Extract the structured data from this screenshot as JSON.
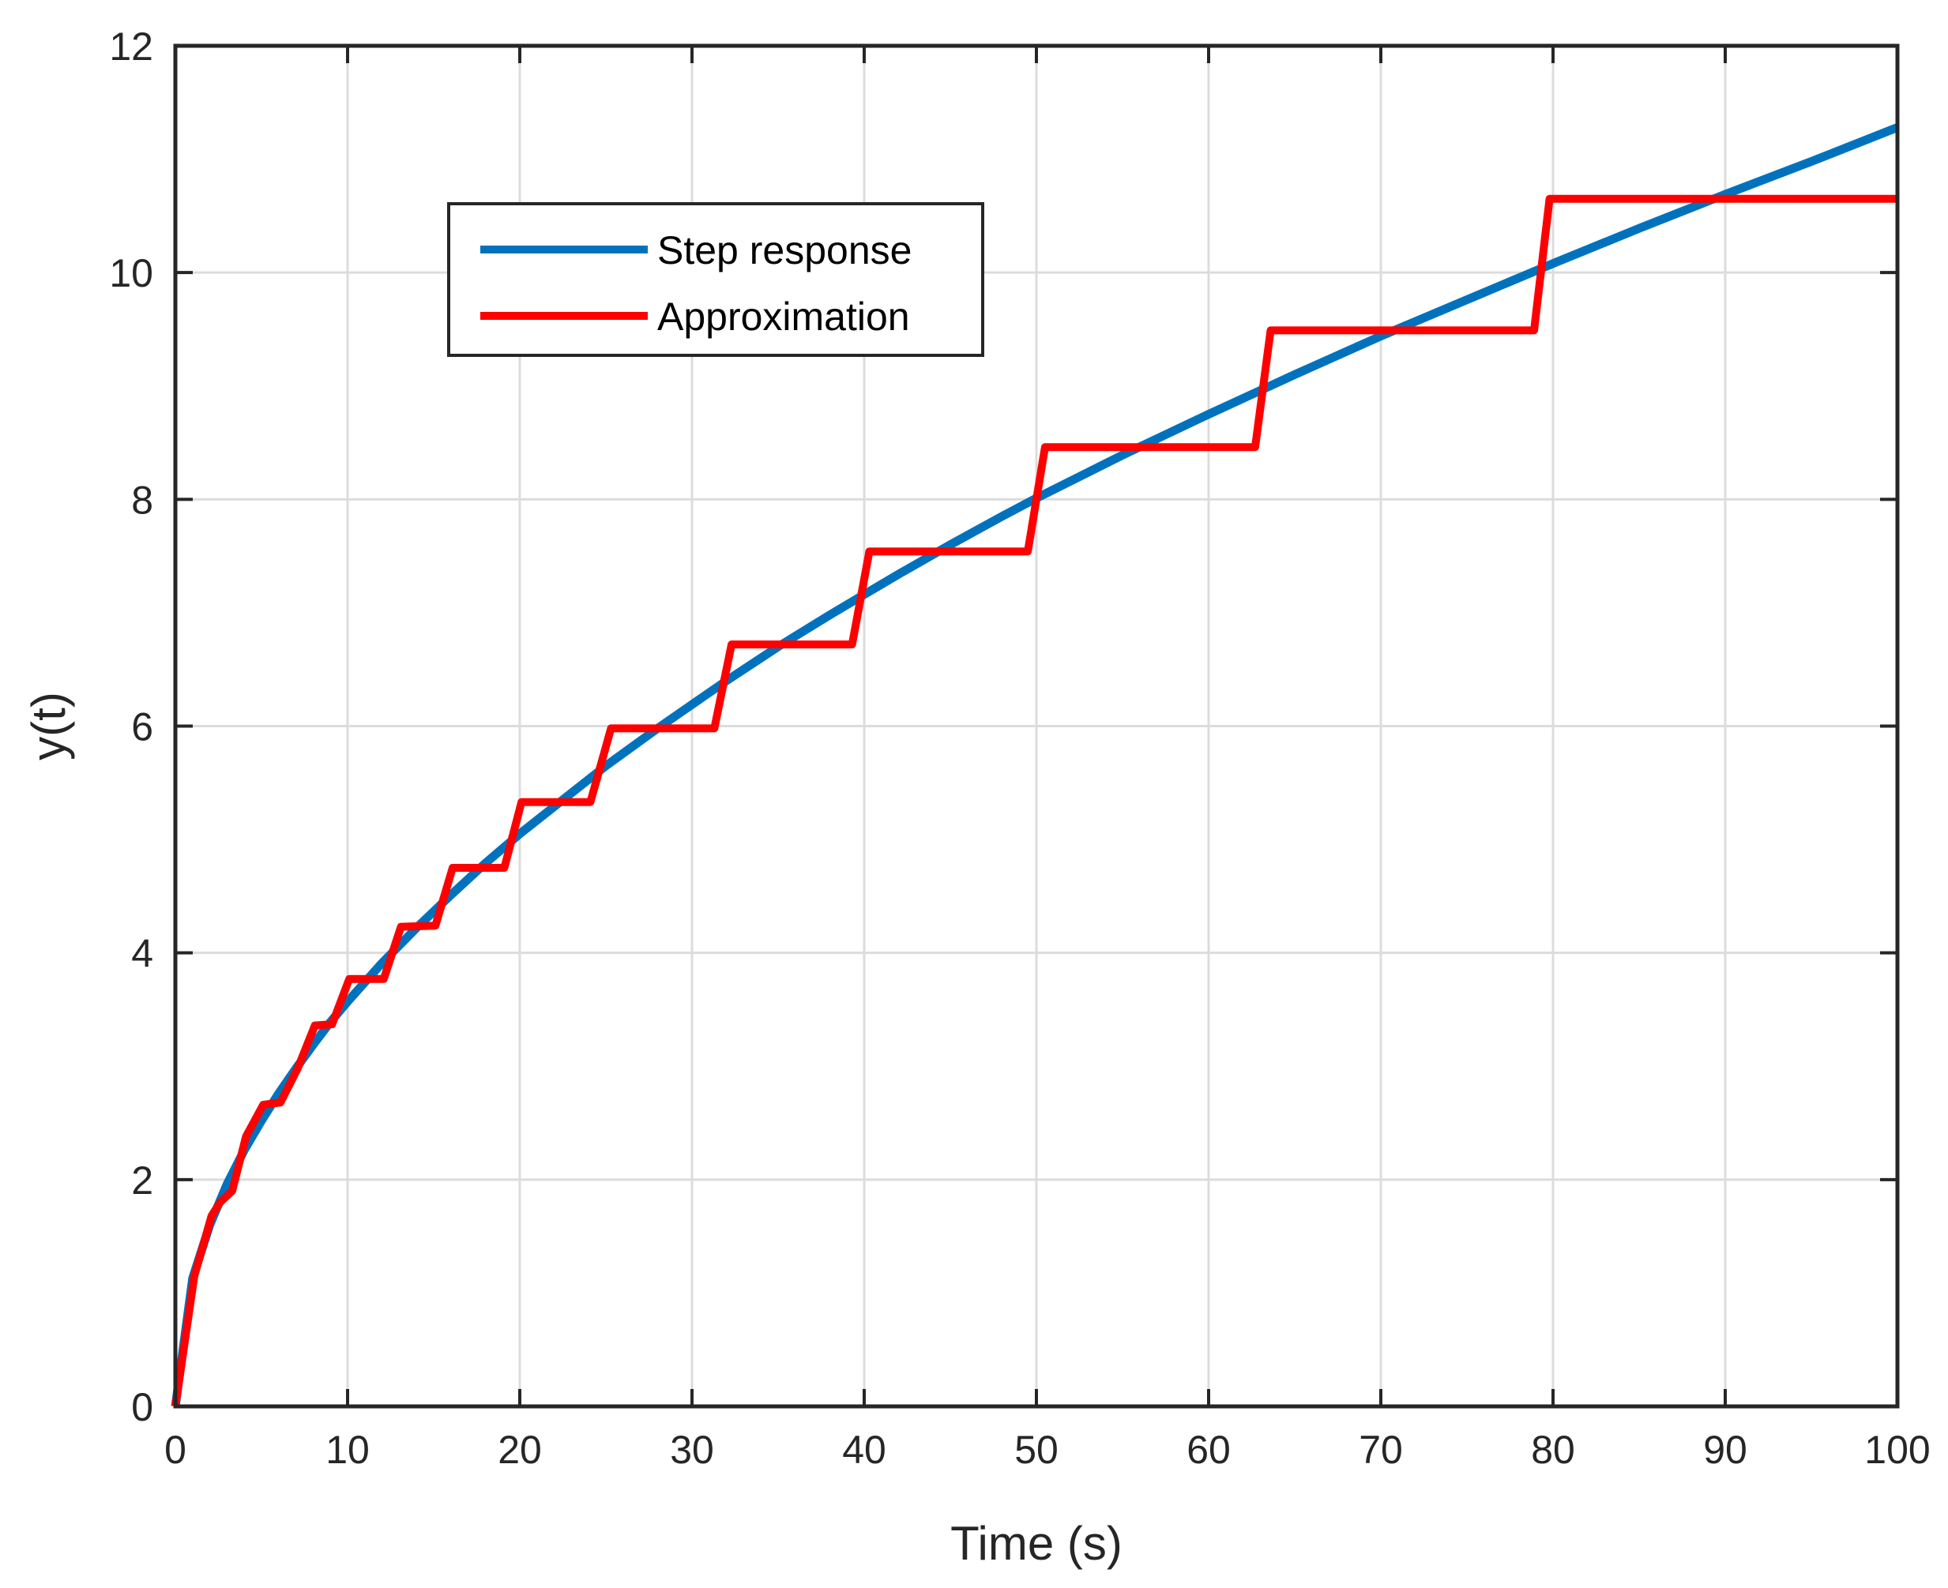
{
  "chart_data": {
    "type": "line",
    "title": "",
    "xlabel": "Time (s)",
    "ylabel": "y(t)",
    "xlim": [
      0,
      100
    ],
    "ylim": [
      0,
      12
    ],
    "xticks": [
      0,
      10,
      20,
      30,
      40,
      50,
      60,
      70,
      80,
      90,
      100
    ],
    "yticks": [
      0,
      2,
      4,
      6,
      8,
      10,
      12
    ],
    "xtick_labels": [
      "0",
      "10",
      "20",
      "30",
      "40",
      "50",
      "60",
      "70",
      "80",
      "90",
      "100"
    ],
    "ytick_labels": [
      "0",
      "2",
      "4",
      "6",
      "8",
      "10",
      "12"
    ],
    "grid": true,
    "legend": {
      "position": "upper-left (inside axes)",
      "boxed": true
    },
    "series": [
      {
        "name": "Step response",
        "color": "#0072BD",
        "x": [
          0,
          1,
          2,
          3,
          4,
          5,
          6,
          7,
          8,
          9,
          10,
          12,
          14,
          16,
          18,
          20,
          22,
          25,
          28,
          30,
          32,
          35,
          38,
          40,
          42,
          45,
          48,
          50,
          55,
          60,
          65,
          70,
          75,
          80,
          85,
          90,
          95,
          100
        ],
        "y": [
          0,
          1.13,
          1.6,
          1.96,
          2.26,
          2.52,
          2.76,
          2.98,
          3.19,
          3.39,
          3.57,
          3.91,
          4.22,
          4.51,
          4.79,
          5.05,
          5.29,
          5.65,
          5.98,
          6.19,
          6.4,
          6.7,
          6.98,
          7.16,
          7.34,
          7.6,
          7.85,
          8.01,
          8.39,
          8.75,
          9.1,
          9.44,
          9.76,
          10.08,
          10.39,
          10.69,
          10.98,
          11.28
        ]
      },
      {
        "name": "Approximation",
        "color": "#FF0000",
        "x": [
          0,
          1.1,
          2.1,
          2.6,
          3.3,
          4.1,
          5.1,
          6.1,
          7.1,
          8.1,
          9.1,
          10.1,
          12.1,
          13.1,
          15.1,
          16.1,
          19.1,
          20.1,
          24.1,
          25.3,
          31.3,
          32.3,
          39.3,
          40.3,
          49.5,
          50.5,
          62.7,
          63.6,
          78.9,
          79.8,
          100
        ],
        "y": [
          0,
          1.15,
          1.68,
          1.8,
          1.9,
          2.38,
          2.66,
          2.68,
          2.98,
          3.36,
          3.37,
          3.77,
          3.77,
          4.23,
          4.24,
          4.75,
          4.75,
          5.33,
          5.33,
          5.98,
          5.98,
          6.72,
          6.72,
          7.54,
          7.54,
          8.46,
          8.46,
          9.49,
          9.49,
          10.65,
          10.65
        ]
      }
    ]
  }
}
